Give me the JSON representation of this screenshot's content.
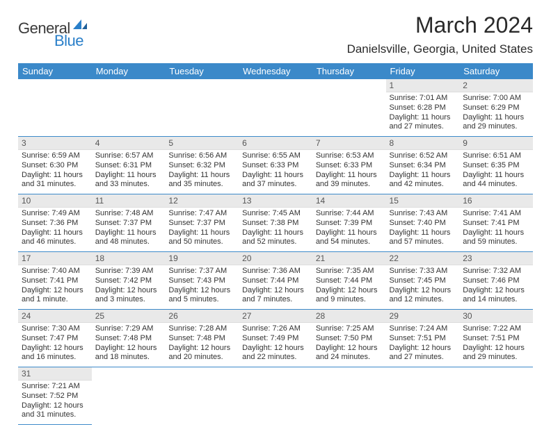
{
  "logo": {
    "part1": "General",
    "part2": "Blue"
  },
  "title": "March 2024",
  "subtitle": "Danielsville, Georgia, United States",
  "colors": {
    "header_bg": "#3b89c9",
    "header_text": "#ffffff",
    "daynum_bg": "#e9e9e9",
    "body_text": "#333333",
    "logo_blue": "#2a7fc9",
    "row_divider": "#3b89c9"
  },
  "typography": {
    "title_fontsize": 32,
    "subtitle_fontsize": 17,
    "weekday_fontsize": 13,
    "cell_fontsize": 11
  },
  "columns": [
    "Sunday",
    "Monday",
    "Tuesday",
    "Wednesday",
    "Thursday",
    "Friday",
    "Saturday"
  ],
  "weeks": [
    [
      {
        "n": "",
        "sunrise": "",
        "sunset": "",
        "daylight1": "",
        "daylight2": ""
      },
      {
        "n": "",
        "sunrise": "",
        "sunset": "",
        "daylight1": "",
        "daylight2": ""
      },
      {
        "n": "",
        "sunrise": "",
        "sunset": "",
        "daylight1": "",
        "daylight2": ""
      },
      {
        "n": "",
        "sunrise": "",
        "sunset": "",
        "daylight1": "",
        "daylight2": ""
      },
      {
        "n": "",
        "sunrise": "",
        "sunset": "",
        "daylight1": "",
        "daylight2": ""
      },
      {
        "n": "1",
        "sunrise": "Sunrise: 7:01 AM",
        "sunset": "Sunset: 6:28 PM",
        "daylight1": "Daylight: 11 hours",
        "daylight2": "and 27 minutes."
      },
      {
        "n": "2",
        "sunrise": "Sunrise: 7:00 AM",
        "sunset": "Sunset: 6:29 PM",
        "daylight1": "Daylight: 11 hours",
        "daylight2": "and 29 minutes."
      }
    ],
    [
      {
        "n": "3",
        "sunrise": "Sunrise: 6:59 AM",
        "sunset": "Sunset: 6:30 PM",
        "daylight1": "Daylight: 11 hours",
        "daylight2": "and 31 minutes."
      },
      {
        "n": "4",
        "sunrise": "Sunrise: 6:57 AM",
        "sunset": "Sunset: 6:31 PM",
        "daylight1": "Daylight: 11 hours",
        "daylight2": "and 33 minutes."
      },
      {
        "n": "5",
        "sunrise": "Sunrise: 6:56 AM",
        "sunset": "Sunset: 6:32 PM",
        "daylight1": "Daylight: 11 hours",
        "daylight2": "and 35 minutes."
      },
      {
        "n": "6",
        "sunrise": "Sunrise: 6:55 AM",
        "sunset": "Sunset: 6:33 PM",
        "daylight1": "Daylight: 11 hours",
        "daylight2": "and 37 minutes."
      },
      {
        "n": "7",
        "sunrise": "Sunrise: 6:53 AM",
        "sunset": "Sunset: 6:33 PM",
        "daylight1": "Daylight: 11 hours",
        "daylight2": "and 39 minutes."
      },
      {
        "n": "8",
        "sunrise": "Sunrise: 6:52 AM",
        "sunset": "Sunset: 6:34 PM",
        "daylight1": "Daylight: 11 hours",
        "daylight2": "and 42 minutes."
      },
      {
        "n": "9",
        "sunrise": "Sunrise: 6:51 AM",
        "sunset": "Sunset: 6:35 PM",
        "daylight1": "Daylight: 11 hours",
        "daylight2": "and 44 minutes."
      }
    ],
    [
      {
        "n": "10",
        "sunrise": "Sunrise: 7:49 AM",
        "sunset": "Sunset: 7:36 PM",
        "daylight1": "Daylight: 11 hours",
        "daylight2": "and 46 minutes."
      },
      {
        "n": "11",
        "sunrise": "Sunrise: 7:48 AM",
        "sunset": "Sunset: 7:37 PM",
        "daylight1": "Daylight: 11 hours",
        "daylight2": "and 48 minutes."
      },
      {
        "n": "12",
        "sunrise": "Sunrise: 7:47 AM",
        "sunset": "Sunset: 7:37 PM",
        "daylight1": "Daylight: 11 hours",
        "daylight2": "and 50 minutes."
      },
      {
        "n": "13",
        "sunrise": "Sunrise: 7:45 AM",
        "sunset": "Sunset: 7:38 PM",
        "daylight1": "Daylight: 11 hours",
        "daylight2": "and 52 minutes."
      },
      {
        "n": "14",
        "sunrise": "Sunrise: 7:44 AM",
        "sunset": "Sunset: 7:39 PM",
        "daylight1": "Daylight: 11 hours",
        "daylight2": "and 54 minutes."
      },
      {
        "n": "15",
        "sunrise": "Sunrise: 7:43 AM",
        "sunset": "Sunset: 7:40 PM",
        "daylight1": "Daylight: 11 hours",
        "daylight2": "and 57 minutes."
      },
      {
        "n": "16",
        "sunrise": "Sunrise: 7:41 AM",
        "sunset": "Sunset: 7:41 PM",
        "daylight1": "Daylight: 11 hours",
        "daylight2": "and 59 minutes."
      }
    ],
    [
      {
        "n": "17",
        "sunrise": "Sunrise: 7:40 AM",
        "sunset": "Sunset: 7:41 PM",
        "daylight1": "Daylight: 12 hours",
        "daylight2": "and 1 minute."
      },
      {
        "n": "18",
        "sunrise": "Sunrise: 7:39 AM",
        "sunset": "Sunset: 7:42 PM",
        "daylight1": "Daylight: 12 hours",
        "daylight2": "and 3 minutes."
      },
      {
        "n": "19",
        "sunrise": "Sunrise: 7:37 AM",
        "sunset": "Sunset: 7:43 PM",
        "daylight1": "Daylight: 12 hours",
        "daylight2": "and 5 minutes."
      },
      {
        "n": "20",
        "sunrise": "Sunrise: 7:36 AM",
        "sunset": "Sunset: 7:44 PM",
        "daylight1": "Daylight: 12 hours",
        "daylight2": "and 7 minutes."
      },
      {
        "n": "21",
        "sunrise": "Sunrise: 7:35 AM",
        "sunset": "Sunset: 7:44 PM",
        "daylight1": "Daylight: 12 hours",
        "daylight2": "and 9 minutes."
      },
      {
        "n": "22",
        "sunrise": "Sunrise: 7:33 AM",
        "sunset": "Sunset: 7:45 PM",
        "daylight1": "Daylight: 12 hours",
        "daylight2": "and 12 minutes."
      },
      {
        "n": "23",
        "sunrise": "Sunrise: 7:32 AM",
        "sunset": "Sunset: 7:46 PM",
        "daylight1": "Daylight: 12 hours",
        "daylight2": "and 14 minutes."
      }
    ],
    [
      {
        "n": "24",
        "sunrise": "Sunrise: 7:30 AM",
        "sunset": "Sunset: 7:47 PM",
        "daylight1": "Daylight: 12 hours",
        "daylight2": "and 16 minutes."
      },
      {
        "n": "25",
        "sunrise": "Sunrise: 7:29 AM",
        "sunset": "Sunset: 7:48 PM",
        "daylight1": "Daylight: 12 hours",
        "daylight2": "and 18 minutes."
      },
      {
        "n": "26",
        "sunrise": "Sunrise: 7:28 AM",
        "sunset": "Sunset: 7:48 PM",
        "daylight1": "Daylight: 12 hours",
        "daylight2": "and 20 minutes."
      },
      {
        "n": "27",
        "sunrise": "Sunrise: 7:26 AM",
        "sunset": "Sunset: 7:49 PM",
        "daylight1": "Daylight: 12 hours",
        "daylight2": "and 22 minutes."
      },
      {
        "n": "28",
        "sunrise": "Sunrise: 7:25 AM",
        "sunset": "Sunset: 7:50 PM",
        "daylight1": "Daylight: 12 hours",
        "daylight2": "and 24 minutes."
      },
      {
        "n": "29",
        "sunrise": "Sunrise: 7:24 AM",
        "sunset": "Sunset: 7:51 PM",
        "daylight1": "Daylight: 12 hours",
        "daylight2": "and 27 minutes."
      },
      {
        "n": "30",
        "sunrise": "Sunrise: 7:22 AM",
        "sunset": "Sunset: 7:51 PM",
        "daylight1": "Daylight: 12 hours",
        "daylight2": "and 29 minutes."
      }
    ],
    [
      {
        "n": "31",
        "sunrise": "Sunrise: 7:21 AM",
        "sunset": "Sunset: 7:52 PM",
        "daylight1": "Daylight: 12 hours",
        "daylight2": "and 31 minutes."
      },
      {
        "n": "",
        "sunrise": "",
        "sunset": "",
        "daylight1": "",
        "daylight2": ""
      },
      {
        "n": "",
        "sunrise": "",
        "sunset": "",
        "daylight1": "",
        "daylight2": ""
      },
      {
        "n": "",
        "sunrise": "",
        "sunset": "",
        "daylight1": "",
        "daylight2": ""
      },
      {
        "n": "",
        "sunrise": "",
        "sunset": "",
        "daylight1": "",
        "daylight2": ""
      },
      {
        "n": "",
        "sunrise": "",
        "sunset": "",
        "daylight1": "",
        "daylight2": ""
      },
      {
        "n": "",
        "sunrise": "",
        "sunset": "",
        "daylight1": "",
        "daylight2": ""
      }
    ]
  ]
}
